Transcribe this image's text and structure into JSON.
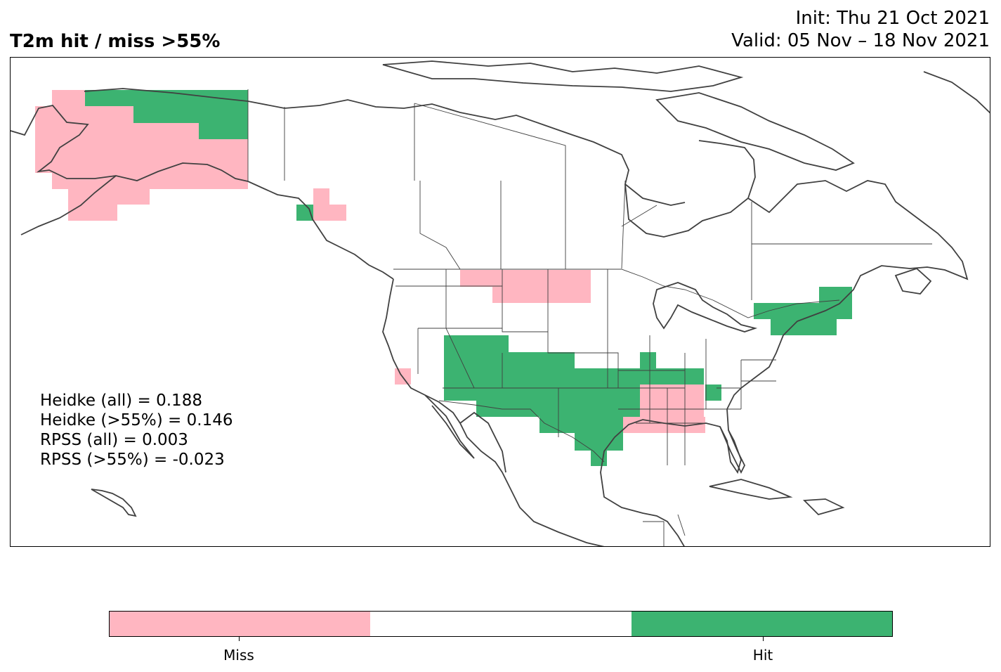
{
  "title": "T2m hit / miss  >55%",
  "init_line": "Init: Thu 21 Oct 2021",
  "valid_line": "Valid: 05 Nov – 18 Nov 2021",
  "scores": [
    "Heidke (all) = 0.188",
    "Heidke (>55%) = 0.146",
    "RPSS (all) = 0.003",
    "RPSS (>55%) = -0.023"
  ],
  "legend": {
    "categories": [
      {
        "label": "Miss",
        "color": "#ffb6c1"
      },
      {
        "label": "",
        "color": "#ffffff"
      },
      {
        "label": "Hit",
        "color": "#3cb371"
      }
    ]
  },
  "colors": {
    "miss": "#ffb6c1",
    "hit": "#3cb371",
    "coastline": "#404040",
    "border": "#404040"
  }
}
